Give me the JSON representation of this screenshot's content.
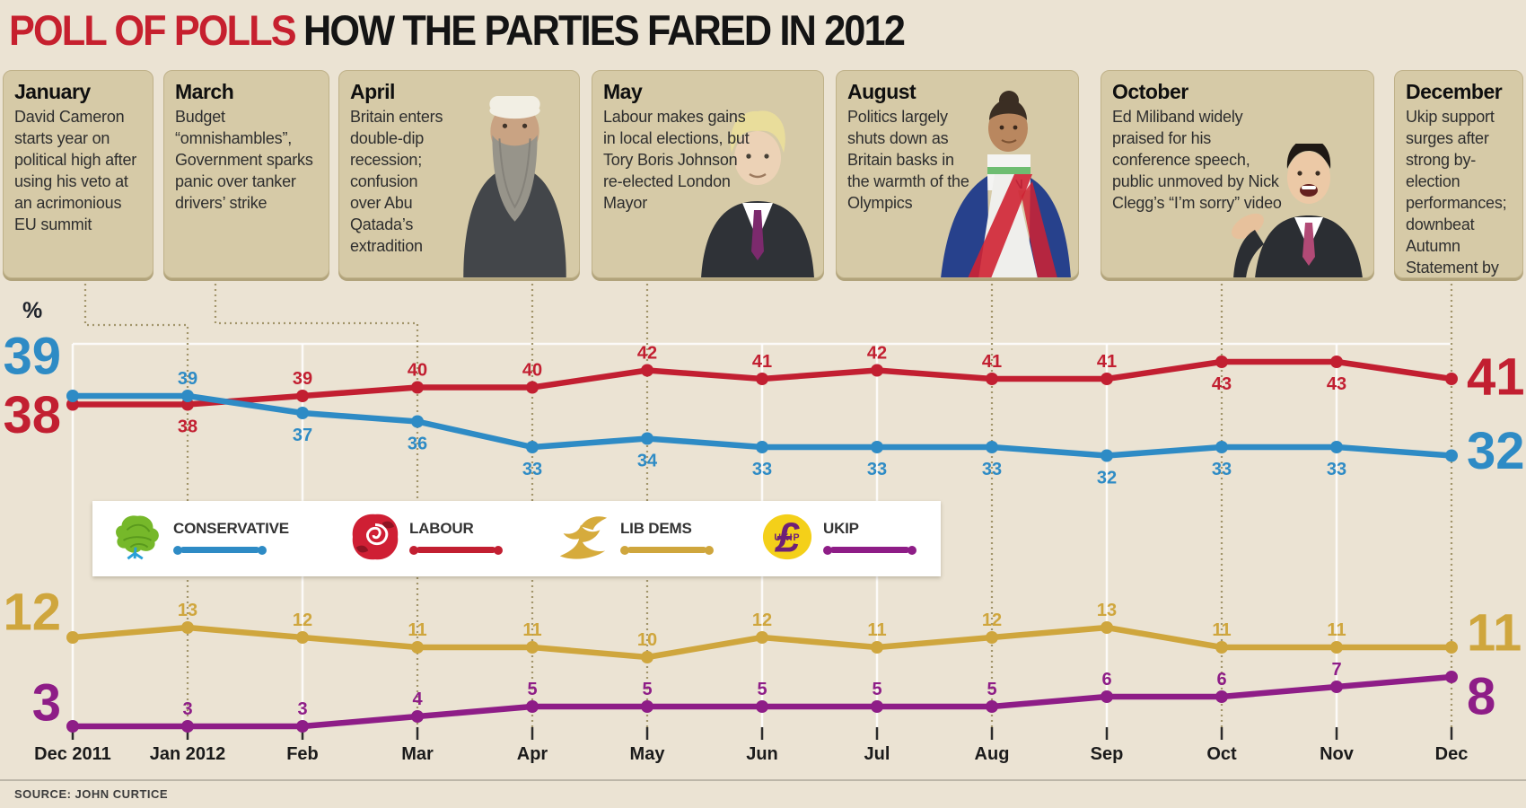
{
  "title": {
    "highlight": "POLL OF POLLS",
    "rest": "HOW THE PARTIES FARED IN 2012"
  },
  "source": "SOURCE: JOHN CURTICE",
  "annotations": [
    {
      "month": "January",
      "text": "David Cameron starts year on political high after using his veto at an acrimonious EU summit"
    },
    {
      "month": "March",
      "text": "Budget “omnishambles”, Government sparks panic over tanker drivers’ strike"
    },
    {
      "month": "April",
      "text": "Britain enters double-dip recession; confusion over Abu Qatada’s extradition",
      "photo": "abu-qatada"
    },
    {
      "month": "May",
      "text": "Labour makes gains in local elections, but Tory Boris Johnson re-elected London Mayor",
      "photo": "boris-johnson"
    },
    {
      "month": "August",
      "text": "Politics largely shuts down as Britain basks in the warmth of the Olympics",
      "photo": "jessica-ennis"
    },
    {
      "month": "October",
      "text": "Ed Miliband widely praised for his conference speech, public unmoved by Nick Clegg’s “I’m sorry” video",
      "photo": "ed-miliband"
    },
    {
      "month": "December",
      "text": "Ukip support surges after strong by-election performances; downbeat Autumn Statement by George Osborne"
    }
  ],
  "legend": [
    {
      "party": "CONSERVATIVE",
      "color": "#2e8bc5",
      "logo": "conservative-tree"
    },
    {
      "party": "LABOUR",
      "color": "#c21f31",
      "logo": "labour-rose"
    },
    {
      "party": "LIB DEMS",
      "color": "#cfa63d",
      "logo": "libdem-bird"
    },
    {
      "party": "UKIP",
      "color": "#8e1d87",
      "logo": "ukip-pound"
    }
  ],
  "chart_data": {
    "type": "line",
    "x": [
      "Dec 2011",
      "Jan 2012",
      "Feb",
      "Mar",
      "Apr",
      "May",
      "Jun",
      "Jul",
      "Aug",
      "Sep",
      "Oct",
      "Nov",
      "Dec"
    ],
    "ylabel": "%",
    "ylim_top_band": [
      32,
      43
    ],
    "ylim_bottom_band": [
      3,
      13
    ],
    "legend_position": "middle-inset",
    "grid": "vertical-months",
    "series": [
      {
        "name": "Conservative",
        "color": "#2e8bc5",
        "values": [
          39,
          39,
          37,
          36,
          33,
          34,
          33,
          33,
          33,
          32,
          33,
          33,
          32
        ],
        "label_below": [
          2,
          3,
          4,
          5,
          6,
          7,
          8,
          9,
          10,
          11
        ]
      },
      {
        "name": "Labour",
        "color": "#c21f31",
        "values": [
          38,
          38,
          39,
          40,
          40,
          42,
          41,
          42,
          41,
          41,
          43,
          43,
          41
        ],
        "label_below": [
          1,
          10,
          11
        ]
      },
      {
        "name": "Lib Dems",
        "color": "#cfa63d",
        "values": [
          12,
          13,
          12,
          11,
          11,
          10,
          12,
          11,
          12,
          13,
          11,
          11,
          11
        ],
        "label_below": []
      },
      {
        "name": "UKIP",
        "color": "#8e1d87",
        "values": [
          3,
          3,
          3,
          4,
          5,
          5,
          5,
          5,
          5,
          6,
          6,
          7,
          8
        ],
        "label_below": []
      }
    ],
    "annotated_months": [
      1,
      3,
      4,
      5,
      8,
      10,
      12
    ],
    "grid_months": [
      0,
      2,
      6,
      7,
      9,
      11
    ]
  }
}
